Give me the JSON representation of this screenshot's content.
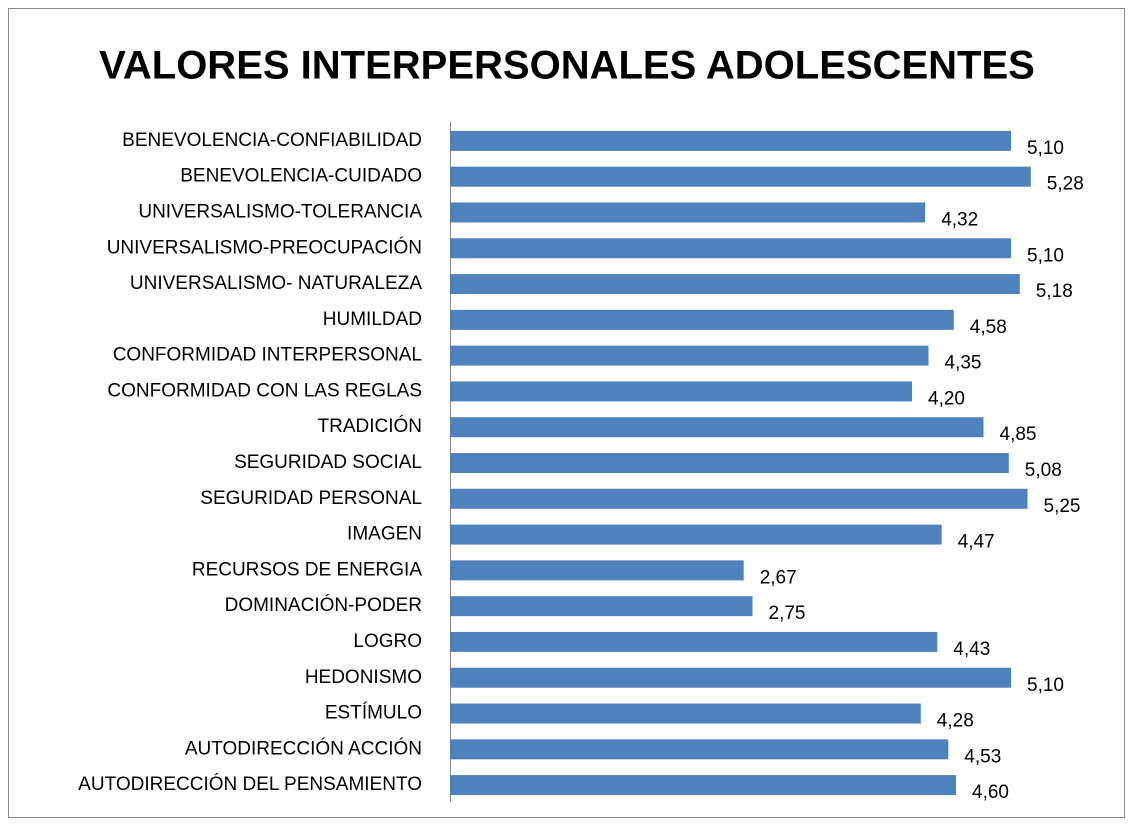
{
  "chart_data": {
    "type": "bar",
    "orientation": "horizontal",
    "title": "VALORES INTERPERSONALES ADOLESCENTES",
    "categories": [
      "BENEVOLENCIA-CONFIABILIDAD",
      "BENEVOLENCIA-CUIDADO",
      "UNIVERSALISMO-TOLERANCIA",
      "UNIVERSALISMO-PREOCUPACIÓN",
      "UNIVERSALISMO- NATURALEZA",
      "HUMILDAD",
      "CONFORMIDAD INTERPERSONAL",
      "CONFORMIDAD CON LAS REGLAS",
      "TRADICIÓN",
      "SEGURIDAD SOCIAL",
      "SEGURIDAD PERSONAL",
      "IMAGEN",
      "RECURSOS DE ENERGIA",
      "DOMINACIÓN-PODER",
      "LOGRO",
      "HEDONISMO",
      "ESTÍMULO",
      "AUTODIRECCIÓN ACCIÓN",
      "AUTODIRECCIÓN DEL PENSAMIENTO"
    ],
    "values": [
      5.1,
      5.28,
      4.32,
      5.1,
      5.18,
      4.58,
      4.35,
      4.2,
      4.85,
      5.08,
      5.25,
      4.47,
      2.67,
      2.75,
      4.43,
      5.1,
      4.28,
      4.53,
      4.6
    ],
    "value_labels": [
      "5,10",
      "5,28",
      "4,32",
      "5,10",
      "5,18",
      "4,58",
      "4,35",
      "4,20",
      "4,85",
      "5,08",
      "5,25",
      "4,47",
      "2,67",
      "2,75",
      "4,43",
      "5,10",
      "4,28",
      "4,53",
      "4,60"
    ],
    "color": "#4f81bd",
    "xlim": [
      0,
      6
    ]
  }
}
